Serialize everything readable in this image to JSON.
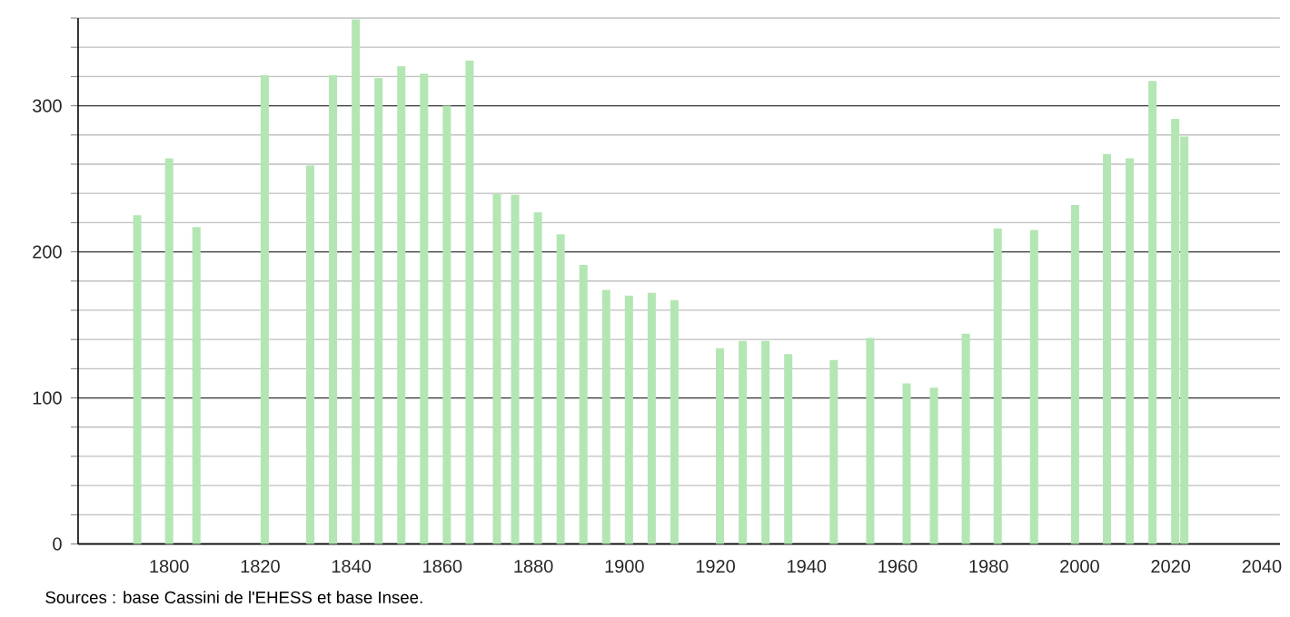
{
  "chart_data": {
    "type": "bar",
    "x": [
      1793,
      1800,
      1806,
      1821,
      1831,
      1836,
      1841,
      1846,
      1851,
      1856,
      1861,
      1866,
      1872,
      1876,
      1881,
      1886,
      1891,
      1896,
      1901,
      1906,
      1911,
      1921,
      1926,
      1931,
      1936,
      1946,
      1954,
      1962,
      1968,
      1975,
      1982,
      1990,
      1999,
      2006,
      2011,
      2016,
      2021,
      2023
    ],
    "values": [
      225,
      264,
      217,
      321,
      259,
      321,
      359,
      319,
      327,
      322,
      300,
      331,
      240,
      239,
      227,
      212,
      191,
      174,
      170,
      172,
      167,
      134,
      139,
      139,
      130,
      126,
      141,
      110,
      107,
      144,
      216,
      215,
      232,
      267,
      264,
      317,
      291,
      279
    ],
    "color": "#b3e6b3",
    "xlim": [
      1780,
      2044
    ],
    "xticks": [
      1800,
      1820,
      1840,
      1860,
      1880,
      1900,
      1920,
      1940,
      1960,
      1980,
      2000,
      2020,
      2040
    ],
    "ylim": [
      0,
      360
    ],
    "yticks": [
      0,
      {
        "value": 20,
        "label": null
      },
      {
        "value": 40,
        "label": null
      },
      {
        "value": 60,
        "label": null
      },
      {
        "value": 80,
        "label": null
      },
      100,
      {
        "value": 120,
        "label": null
      },
      {
        "value": 140,
        "label": null
      },
      {
        "value": 160,
        "label": null
      },
      {
        "value": 180,
        "label": null
      },
      200,
      {
        "value": 220,
        "label": null
      },
      {
        "value": 240,
        "label": null
      },
      {
        "value": 260,
        "label": null
      },
      {
        "value": 280,
        "label": null
      },
      300,
      {
        "value": 320,
        "label": null
      },
      {
        "value": 340,
        "label": null
      },
      {
        "value": 360,
        "label": null
      }
    ],
    "grid": "y",
    "annotations": [
      "Sources : base Cassini de l'EHESS et base Insee."
    ]
  }
}
